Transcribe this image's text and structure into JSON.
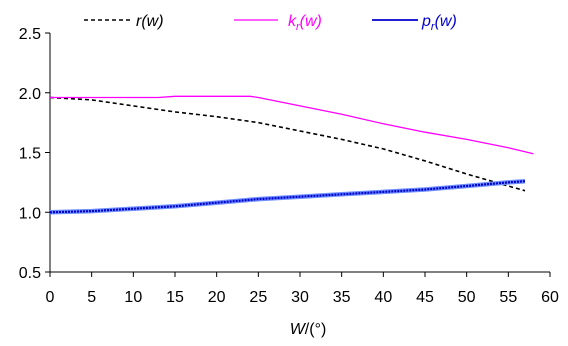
{
  "chart_data": {
    "type": "line",
    "xlabel_main": "W",
    "xlabel_unit": "/(°)",
    "xlim": [
      0,
      60
    ],
    "ylim": [
      0.5,
      2.5
    ],
    "xticks": [
      "0",
      "5",
      "10",
      "15",
      "20",
      "25",
      "30",
      "35",
      "40",
      "45",
      "50",
      "55",
      "60"
    ],
    "yticks": [
      "0.5",
      "1.0",
      "1.5",
      "2.0",
      "2.5"
    ],
    "grid": false,
    "legend_position": "top",
    "series": [
      {
        "key": "r",
        "name_main": "r",
        "name_sub": "",
        "name_tail": "(w)",
        "color": "#000000",
        "style": "dashed",
        "x": [
          0,
          5,
          10,
          15,
          20,
          25,
          30,
          35,
          40,
          45,
          50,
          55,
          57
        ],
        "y": [
          1.96,
          1.94,
          1.89,
          1.84,
          1.8,
          1.75,
          1.68,
          1.61,
          1.53,
          1.43,
          1.32,
          1.22,
          1.18
        ]
      },
      {
        "key": "k",
        "name_main": "k",
        "name_sub": "r",
        "name_tail": "(w)",
        "color": "#ff00ff",
        "style": "solid",
        "x": [
          0,
          5,
          10,
          13,
          15,
          20,
          24,
          25,
          30,
          35,
          40,
          45,
          50,
          55,
          58
        ],
        "y": [
          1.96,
          1.96,
          1.96,
          1.96,
          1.97,
          1.97,
          1.97,
          1.96,
          1.89,
          1.82,
          1.74,
          1.67,
          1.61,
          1.54,
          1.49
        ]
      },
      {
        "key": "p",
        "name_main": "p",
        "name_sub": "r",
        "name_tail": "(w)",
        "color": "#0000cc",
        "style": "solid-thick",
        "x": [
          0,
          5,
          10,
          15,
          20,
          25,
          30,
          35,
          40,
          45,
          50,
          55,
          57
        ],
        "y": [
          1.0,
          1.01,
          1.03,
          1.05,
          1.08,
          1.11,
          1.13,
          1.15,
          1.17,
          1.19,
          1.22,
          1.25,
          1.26
        ]
      }
    ]
  }
}
